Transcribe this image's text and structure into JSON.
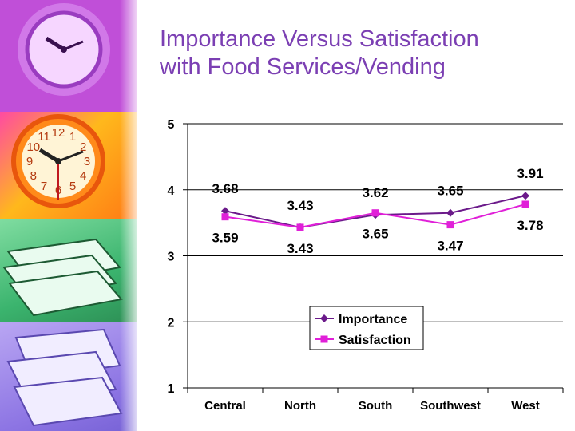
{
  "slide": {
    "title_line1": "Importance Versus Satisfaction",
    "title_line2": "with Food Services/Vending"
  },
  "decor": {
    "clock_numerals": [
      "12",
      "1",
      "2",
      "3",
      "4",
      "5",
      "6",
      "7",
      "8",
      "9",
      "10",
      "11"
    ]
  },
  "chart_data": {
    "type": "line",
    "categories": [
      "Central",
      "North",
      "South",
      "Southwest",
      "West"
    ],
    "series": [
      {
        "name": "Importance",
        "color": "#6b1a8a",
        "marker": "diamond",
        "values": [
          3.68,
          3.43,
          3.62,
          3.65,
          3.91
        ]
      },
      {
        "name": "Satisfaction",
        "color": "#e020d8",
        "marker": "square",
        "values": [
          3.59,
          3.43,
          3.65,
          3.47,
          3.78
        ]
      }
    ],
    "data_labels": {
      "Importance": [
        "3.68",
        "3.43",
        "3.62",
        "3.65",
        "3.91"
      ],
      "Satisfaction": [
        "3.59",
        "3.43",
        "3.65",
        "3.47",
        "3.78"
      ]
    },
    "ylim": [
      1,
      5
    ],
    "yticks": [
      "1",
      "2",
      "3",
      "4",
      "5"
    ],
    "grid": true,
    "legend_position": "bottom-right"
  }
}
